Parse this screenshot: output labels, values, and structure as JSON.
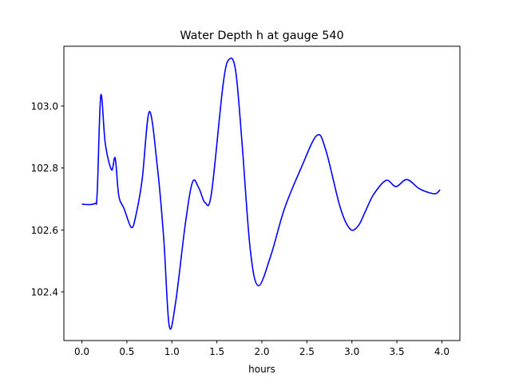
{
  "chart_data": {
    "type": "line",
    "title": "Water Depth h at gauge 540",
    "xlabel": "hours",
    "ylabel": "",
    "xlim": [
      -0.2,
      4.2
    ],
    "ylim": [
      102.243,
      103.193
    ],
    "xticks": [
      0.0,
      0.5,
      1.0,
      1.5,
      2.0,
      2.5,
      3.0,
      3.5,
      4.0
    ],
    "xtick_labels": [
      "0.0",
      "0.5",
      "1.0",
      "1.5",
      "2.0",
      "2.5",
      "3.0",
      "3.5",
      "4.0"
    ],
    "yticks": [
      102.4,
      102.6,
      102.8,
      103.0
    ],
    "ytick_labels": [
      "102.4",
      "102.6",
      "102.8",
      "103.0"
    ],
    "grid": false,
    "series": [
      {
        "name": "h",
        "color": "#0000ff",
        "x": [
          0.0,
          0.14,
          0.17,
          0.21,
          0.26,
          0.33,
          0.37,
          0.41,
          0.47,
          0.55,
          0.6,
          0.67,
          0.75,
          0.84,
          0.91,
          0.97,
          1.04,
          1.15,
          1.23,
          1.3,
          1.37,
          1.44,
          1.57,
          1.64,
          1.71,
          1.78,
          1.87,
          1.96,
          2.1,
          2.25,
          2.43,
          2.61,
          2.71,
          2.87,
          2.98,
          3.07,
          3.15,
          3.24,
          3.38,
          3.49,
          3.61,
          3.74,
          3.84,
          3.93,
          3.98
        ],
        "y": [
          102.683,
          102.685,
          102.72,
          103.034,
          102.879,
          102.794,
          102.832,
          102.711,
          102.668,
          102.608,
          102.647,
          102.763,
          102.982,
          102.8,
          102.57,
          102.291,
          102.363,
          102.621,
          102.755,
          102.735,
          102.688,
          102.719,
          103.072,
          103.152,
          103.111,
          102.879,
          102.539,
          102.42,
          102.518,
          102.668,
          102.796,
          102.905,
          102.858,
          102.673,
          102.603,
          102.613,
          102.66,
          102.714,
          102.76,
          102.74,
          102.763,
          102.735,
          102.722,
          102.717,
          102.73
        ]
      }
    ]
  }
}
